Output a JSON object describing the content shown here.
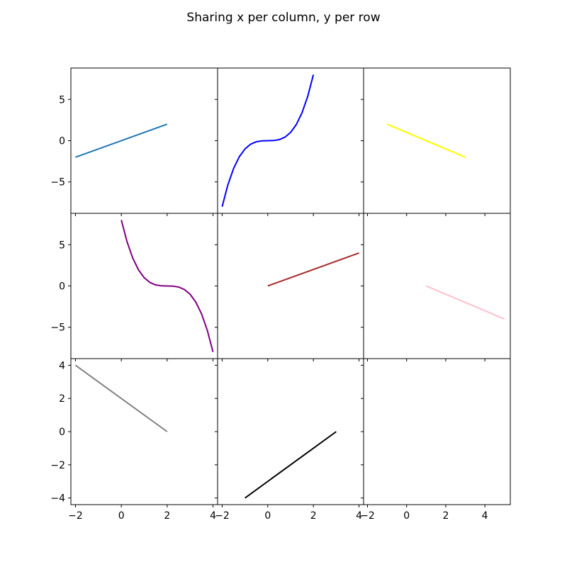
{
  "chart_data": {
    "type": "line",
    "title": "Sharing x per column, y per row",
    "layout": {
      "rows": 3,
      "cols": 3
    },
    "columns": [
      {
        "xlim": [
          -2.2,
          4.2
        ],
        "xticks": [
          -2,
          0,
          2,
          4
        ],
        "xtick_labels": [
          "−2",
          "0",
          "2",
          "4"
        ]
      },
      {
        "xlim": [
          -2.2,
          4.2
        ],
        "xticks": [
          -2,
          0,
          2,
          4
        ],
        "xtick_labels": [
          "−2",
          "0",
          "2",
          "4"
        ]
      },
      {
        "xlim": [
          -2.2,
          5.3
        ],
        "xticks": [
          -2,
          0,
          2,
          4
        ],
        "xtick_labels": [
          "−2",
          "0",
          "2",
          "4"
        ]
      }
    ],
    "rows": [
      {
        "ylim": [
          -8.8,
          8.8
        ],
        "yticks": [
          -5,
          0,
          5
        ],
        "ytick_labels": [
          "−5",
          "0",
          "5"
        ]
      },
      {
        "ylim": [
          -8.8,
          8.8
        ],
        "yticks": [
          -5,
          0,
          5
        ],
        "ytick_labels": [
          "−5",
          "0",
          "5"
        ]
      },
      {
        "ylim": [
          -4.4,
          4.4
        ],
        "yticks": [
          -4,
          -2,
          0,
          2,
          4
        ],
        "ytick_labels": [
          "−4",
          "−2",
          "0",
          "2",
          "4"
        ]
      }
    ],
    "subplots": [
      {
        "row": 0,
        "col": 0,
        "color": "#1f77b4",
        "x": [
          -2,
          2
        ],
        "y": [
          -2,
          2
        ]
      },
      {
        "row": 0,
        "col": 1,
        "color": "#0000ff",
        "x": [
          -2,
          -1.75,
          -1.5,
          -1.25,
          -1,
          -0.75,
          -0.5,
          -0.25,
          0,
          0.25,
          0.5,
          0.75,
          1,
          1.25,
          1.5,
          1.75,
          2
        ],
        "y": [
          -8,
          -5.359,
          -3.375,
          -1.953,
          -1,
          -0.422,
          -0.125,
          -0.016,
          0,
          0.016,
          0.125,
          0.422,
          1,
          1.953,
          3.375,
          5.359,
          8
        ]
      },
      {
        "row": 0,
        "col": 2,
        "color": "#ffff00",
        "x": [
          -1,
          3
        ],
        "y": [
          2,
          -2
        ]
      },
      {
        "row": 1,
        "col": 0,
        "color": "#800080",
        "x": [
          0,
          0.25,
          0.5,
          0.75,
          1,
          1.25,
          1.5,
          1.75,
          2,
          2.25,
          2.5,
          2.75,
          3,
          3.25,
          3.5,
          3.75,
          4
        ],
        "y": [
          8,
          5.359,
          3.375,
          1.953,
          1,
          0.422,
          0.125,
          0.016,
          0,
          -0.016,
          -0.125,
          -0.422,
          -1,
          -1.953,
          -3.375,
          -5.359,
          -8
        ]
      },
      {
        "row": 1,
        "col": 1,
        "color": "#a52a2a",
        "x": [
          0,
          4
        ],
        "y": [
          0,
          4
        ]
      },
      {
        "row": 1,
        "col": 2,
        "color": "#ffc0cb",
        "x": [
          1,
          5
        ],
        "y": [
          0,
          -4
        ]
      },
      {
        "row": 2,
        "col": 0,
        "color": "#808080",
        "x": [
          -2,
          2
        ],
        "y": [
          4,
          0
        ]
      },
      {
        "row": 2,
        "col": 1,
        "color": "#000000",
        "x": [
          -1,
          3
        ],
        "y": [
          -4,
          0
        ]
      },
      {
        "row": 2,
        "col": 2,
        "color": "#000000",
        "x": [],
        "y": []
      }
    ]
  }
}
